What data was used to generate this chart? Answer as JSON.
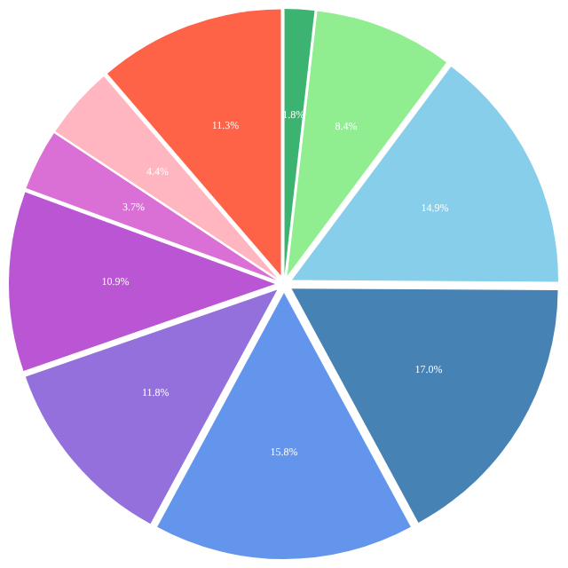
{
  "chart_data": {
    "type": "pie",
    "categories": [
      null,
      null,
      null,
      null,
      null,
      null,
      null,
      null,
      null,
      null
    ],
    "values": [
      1.8,
      8.4,
      14.9,
      17.0,
      15.8,
      11.8,
      10.9,
      3.7,
      4.4,
      11.3
    ],
    "value_labels": [
      "1.8%",
      "8.4%",
      "14.9%",
      "17.0%",
      "15.8%",
      "11.8%",
      "10.9%",
      "3.7%",
      "4.4%",
      "11.3%"
    ],
    "colors": [
      "#3cb371",
      "#90ee90",
      "#87ceeb",
      "#4682b4",
      "#6495ed",
      "#9370db",
      "#ba55d3",
      "#da70d6",
      "#ffb6c1",
      "#ff6347"
    ]
  }
}
